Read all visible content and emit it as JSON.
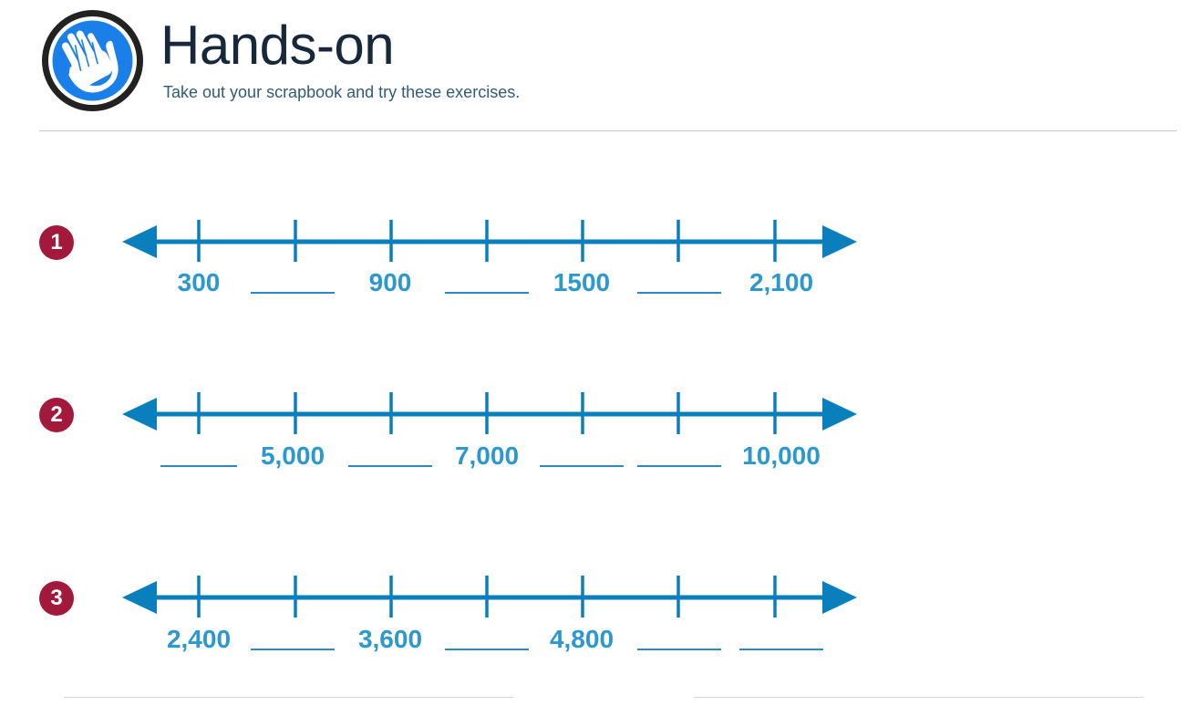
{
  "header": {
    "title": "Hands-on",
    "subtitle": "Take out your scrapbook and try these exercises.",
    "icon": "raised-hand-icon",
    "colors": {
      "icon_ring": "#222222",
      "icon_fill": "#1a7fe8",
      "title": "#17283d",
      "subtitle": "#2f5b7c"
    }
  },
  "style": {
    "badge_color": "#a3193b",
    "line_color": "#0a7fbe",
    "label_color": "#2b98cf"
  },
  "exercises": [
    {
      "number": "1",
      "labels": [
        "300",
        "",
        "900",
        "",
        "1500",
        "",
        "2,100"
      ]
    },
    {
      "number": "2",
      "labels": [
        "",
        "5,000",
        "",
        "7,000",
        "",
        "",
        "10,000"
      ]
    },
    {
      "number": "3",
      "labels": [
        "2,400",
        "",
        "3,600",
        "",
        "4,800",
        "",
        ""
      ]
    }
  ]
}
